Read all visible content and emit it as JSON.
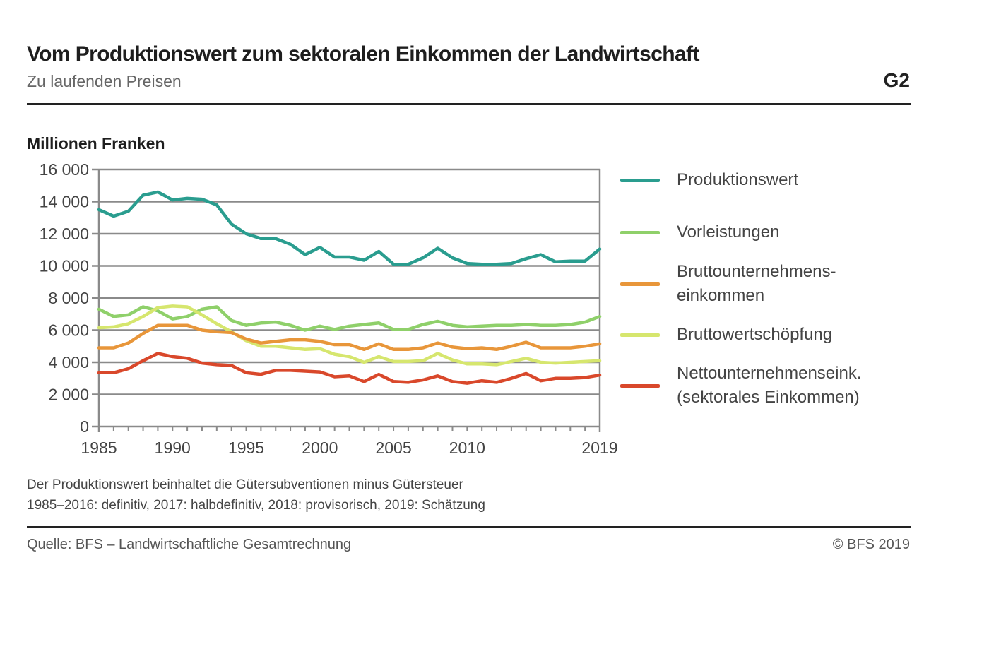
{
  "header": {
    "title": "Vom Produktionswert zum sektoralen Einkommen der Landwirtschaft",
    "subtitle": "Zu laufenden Preisen",
    "chart_code": "G2"
  },
  "unit_label": "Millionen Franken",
  "notes": [
    "Der Produktionswert beinhaltet die Gütersubventionen minus Gütersteuer",
    "1985–2016: definitiv, 2017: halbdefinitiv, 2018: provisorisch, 2019: Schätzung"
  ],
  "footer": {
    "source": "Quelle: BFS – Landwirtschaftliche Gesamtrechnung",
    "copyright": "© BFS 2019"
  },
  "legend": [
    {
      "lines": [
        "Produktionswert"
      ],
      "color": "#2a9d8f"
    },
    {
      "lines": [
        "Vorleistungen"
      ],
      "color": "#8fd06a"
    },
    {
      "lines": [
        "Bruttounternehmens-",
        "einkommen"
      ],
      "color": "#e8963a"
    },
    {
      "lines": [
        "Bruttowertschöpfung"
      ],
      "color": "#d6e66e"
    },
    {
      "lines": [
        "Nettounternehmenseink.",
        "(sektorales Einkommen)"
      ],
      "color": "#d9482b"
    }
  ],
  "chart_data": {
    "type": "line",
    "title": "Vom Produktionswert zum sektoralen Einkommen der Landwirtschaft",
    "subtitle": "Zu laufenden Preisen",
    "xlabel": "",
    "ylabel": "Millionen Franken",
    "x": [
      1985,
      1986,
      1987,
      1988,
      1989,
      1990,
      1991,
      1992,
      1993,
      1994,
      1995,
      1996,
      1997,
      1998,
      1999,
      2000,
      2001,
      2002,
      2003,
      2004,
      2005,
      2006,
      2007,
      2008,
      2009,
      2010,
      2011,
      2012,
      2013,
      2014,
      2015,
      2016,
      2017,
      2018,
      2019
    ],
    "xlim": [
      1985,
      2019
    ],
    "ylim": [
      0,
      16000
    ],
    "x_tick_labels": [
      "1985",
      "1990",
      "1995",
      "2000",
      "2005",
      "2010",
      "2019"
    ],
    "x_tick_values": [
      1985,
      1990,
      1995,
      2000,
      2005,
      2010,
      2019
    ],
    "y_ticks": [
      0,
      2000,
      4000,
      6000,
      8000,
      10000,
      12000,
      14000,
      16000
    ],
    "y_tick_labels": [
      "0",
      "2 000",
      "4 000",
      "6 000",
      "8 000",
      "10 000",
      "12 000",
      "14 000",
      "16 000"
    ],
    "grid": true,
    "legend_position": "right",
    "series": [
      {
        "name": "Produktionswert",
        "color": "#2a9d8f",
        "values": [
          13500,
          13100,
          13400,
          14400,
          14600,
          14100,
          14200,
          14150,
          13800,
          12600,
          12000,
          11700,
          11700,
          11350,
          10700,
          11150,
          10550,
          10550,
          10350,
          10900,
          10100,
          10100,
          10500,
          11100,
          10500,
          10150,
          10100,
          10100,
          10150,
          10450,
          10700,
          10250,
          10300,
          10300,
          11050
        ]
      },
      {
        "name": "Vorleistungen",
        "color": "#8fd06a",
        "values": [
          7300,
          6850,
          6950,
          7450,
          7200,
          6700,
          6850,
          7300,
          7450,
          6600,
          6300,
          6450,
          6500,
          6300,
          6000,
          6250,
          6050,
          6250,
          6350,
          6450,
          6050,
          6050,
          6350,
          6550,
          6300,
          6200,
          6250,
          6300,
          6300,
          6350,
          6300,
          6300,
          6350,
          6500,
          6850
        ]
      },
      {
        "name": "Bruttounternehmenseinkommen",
        "color": "#e8963a",
        "values": [
          4900,
          4900,
          5200,
          5800,
          6300,
          6300,
          6300,
          6000,
          5900,
          5850,
          5450,
          5200,
          5300,
          5400,
          5400,
          5300,
          5100,
          5100,
          4800,
          5150,
          4800,
          4800,
          4900,
          5200,
          4950,
          4850,
          4900,
          4800,
          5000,
          5250,
          4900,
          4900,
          4900,
          5000,
          5150
        ]
      },
      {
        "name": "Bruttowertschöpfung",
        "color": "#d6e66e",
        "values": [
          6150,
          6200,
          6400,
          6850,
          7400,
          7500,
          7450,
          6950,
          6400,
          5900,
          5350,
          5000,
          5000,
          4900,
          4800,
          4850,
          4500,
          4350,
          4000,
          4350,
          4050,
          4050,
          4100,
          4550,
          4150,
          3900,
          3900,
          3850,
          4050,
          4250,
          4000,
          3950,
          4000,
          4050,
          4100
        ]
      },
      {
        "name": "Nettounternehmenseinkommen (sektorales Einkommen)",
        "color": "#d9482b",
        "values": [
          3350,
          3350,
          3600,
          4100,
          4550,
          4350,
          4250,
          3950,
          3850,
          3800,
          3350,
          3250,
          3500,
          3500,
          3450,
          3400,
          3100,
          3150,
          2800,
          3250,
          2800,
          2750,
          2900,
          3150,
          2800,
          2700,
          2850,
          2750,
          3000,
          3300,
          2850,
          3000,
          3000,
          3050,
          3200
        ]
      }
    ]
  }
}
